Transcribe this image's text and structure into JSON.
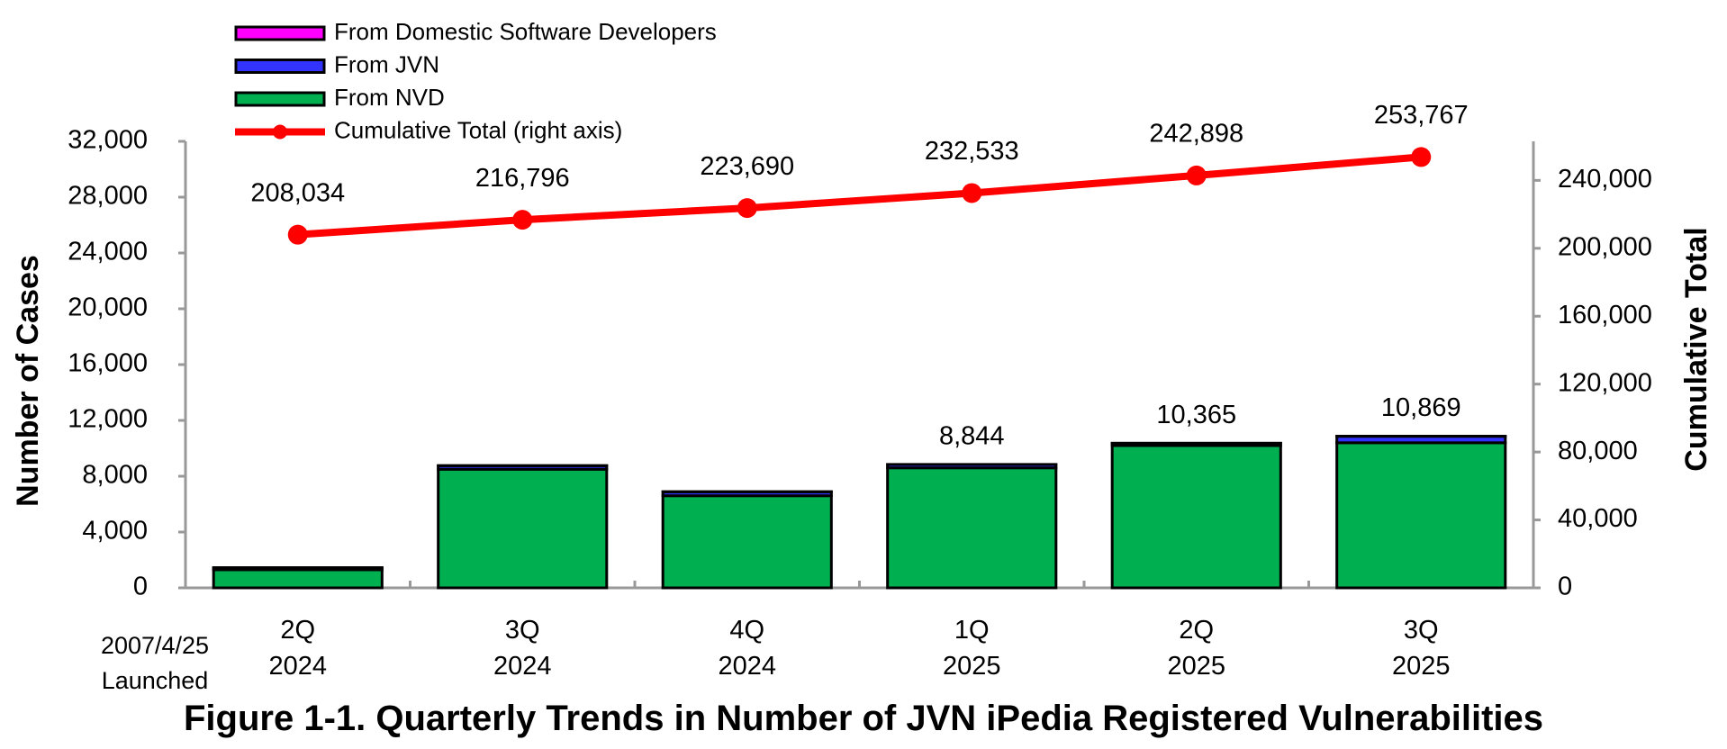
{
  "chart_data": {
    "type": "bar",
    "title": "Figure 1-1. Quarterly Trends in Number of JVN iPedia Registered Vulnerabilities",
    "y_label": "Number of Cases",
    "y2_label": "Cumulative Total",
    "annotation": "2007/4/25\nLaunched",
    "categories": [
      "2Q\n2024",
      "3Q\n2024",
      "4Q\n2024",
      "1Q\n2025",
      "2Q\n2025",
      "3Q\n2025"
    ],
    "series": [
      {
        "name": "From Domestic Software Developers",
        "color": "#ff00ff",
        "type": "bar",
        "values": [
          10,
          12,
          14,
          4,
          5,
          9
        ]
      },
      {
        "name": "From JVN",
        "color": "#3333ff",
        "type": "bar",
        "values": [
          140,
          250,
          280,
          240,
          160,
          460
        ]
      },
      {
        "name": "From NVD",
        "color": "#00b050",
        "type": "bar",
        "values": [
          1300,
          8500,
          6600,
          8600,
          10200,
          10400
        ]
      },
      {
        "name": "Cumulative Total (right axis)",
        "color": "#ff0000",
        "type": "line",
        "axis": "y2",
        "values": [
          208034,
          216796,
          223690,
          232533,
          242898,
          253767
        ],
        "value_labels": [
          "208,034",
          "216,796",
          "223,690",
          "232,533",
          "242,898",
          "253,767"
        ]
      }
    ],
    "bar_totals": {
      "values": [
        null,
        null,
        null,
        8844,
        10365,
        10869
      ],
      "value_labels": [
        null,
        null,
        null,
        "8,844",
        "10,365",
        "10,869"
      ]
    },
    "ylim": [
      0,
      32000
    ],
    "yticks": [
      0,
      {
        "value": 4000,
        "label": "4,000"
      },
      {
        "value": 8000,
        "label": "8,000"
      },
      {
        "value": 12000,
        "label": "12,000"
      },
      {
        "value": 16000,
        "label": "16,000"
      },
      {
        "value": 20000,
        "label": "20,000"
      },
      {
        "value": 24000,
        "label": "24,000"
      },
      {
        "value": 28000,
        "label": "28,000"
      },
      {
        "value": 32000,
        "label": "32,000"
      }
    ],
    "y2lim": [
      0,
      263000
    ],
    "y2ticks": [
      0,
      {
        "value": 40000,
        "label": "40,000"
      },
      {
        "value": 80000,
        "label": "80,000"
      },
      {
        "value": 120000,
        "label": "120,000"
      },
      {
        "value": 160000,
        "label": "160,000"
      },
      {
        "value": 200000,
        "label": "200,000"
      },
      {
        "value": 240000,
        "label": "240,000"
      }
    ],
    "grid": false,
    "legend": "top-left"
  }
}
